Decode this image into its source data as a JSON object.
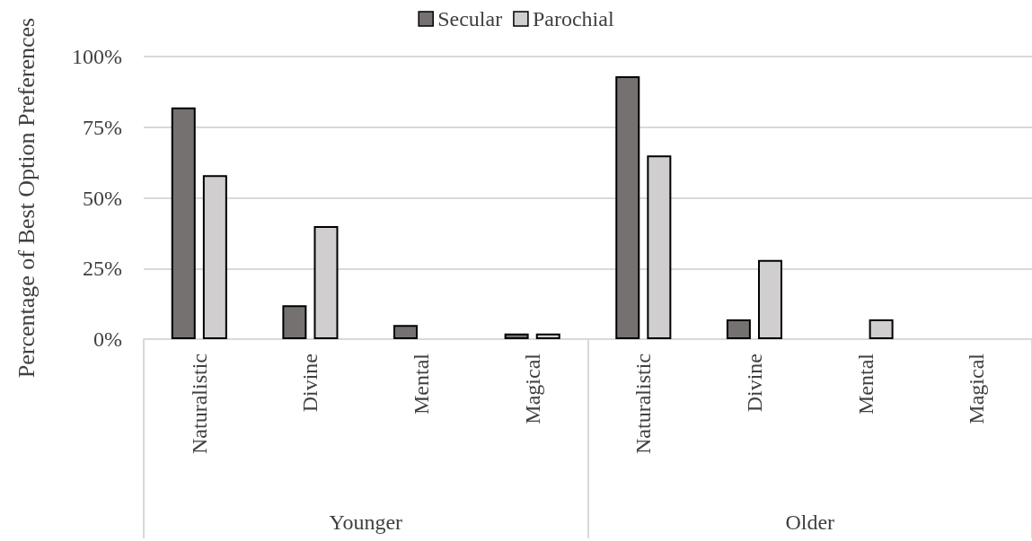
{
  "chart_data": {
    "type": "bar",
    "ylabel": "Percentage of Best Option Preferences",
    "categories": [
      "Naturalistic",
      "Divine",
      "Mental",
      "Magical",
      "Naturalistic",
      "Divine",
      "Mental",
      "Magical"
    ],
    "series": [
      {
        "name": "Secular",
        "color": "#767171",
        "values": [
          82,
          12,
          5,
          2,
          93,
          7,
          0,
          0
        ]
      },
      {
        "name": "Parochial",
        "color": "#d0cece",
        "values": [
          58,
          40,
          0,
          2,
          65,
          28,
          7,
          0
        ]
      }
    ],
    "annotations": [
      "Younger",
      "Older"
    ],
    "ylim": [
      0,
      100
    ],
    "yticks": [
      {
        "value": 0,
        "label": "0%"
      },
      {
        "value": 25,
        "label": "25%"
      },
      {
        "value": 50,
        "label": "50%"
      },
      {
        "value": 75,
        "label": "75%"
      },
      {
        "value": 100,
        "label": "100%"
      }
    ],
    "grid": "y",
    "legend": "top"
  }
}
